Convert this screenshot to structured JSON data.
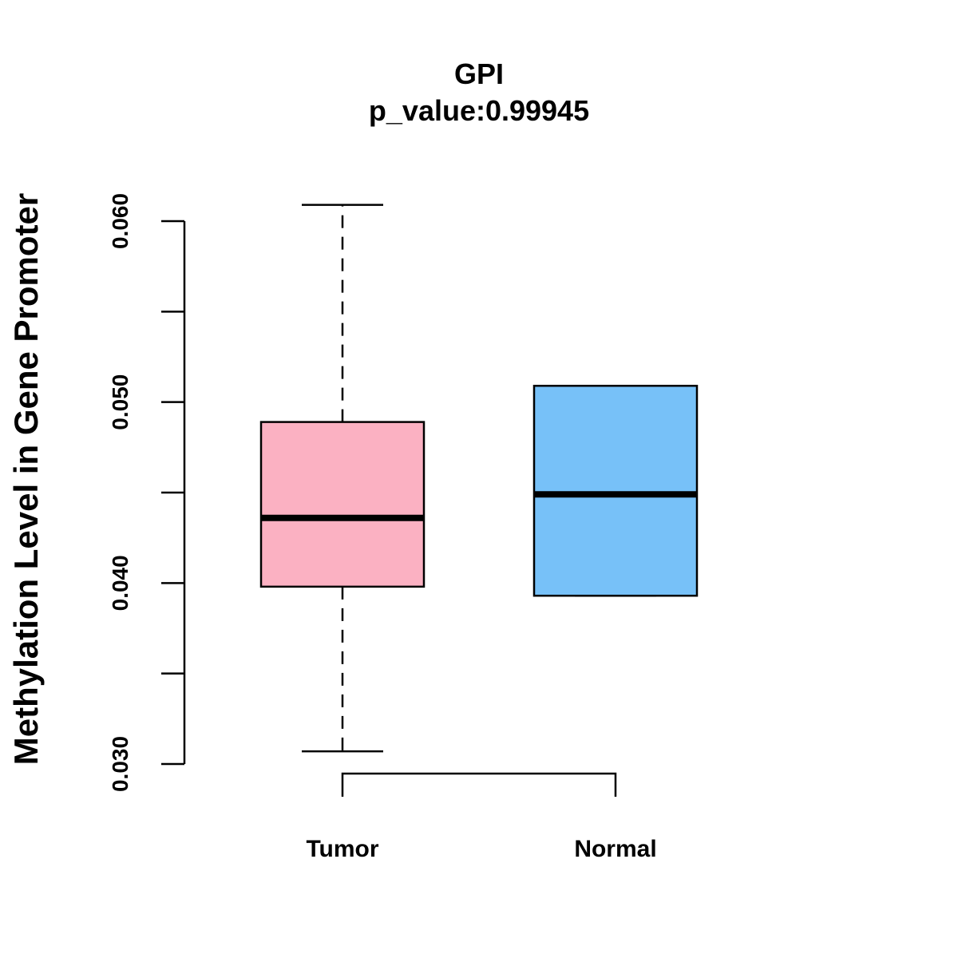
{
  "chart_data": {
    "type": "boxplot",
    "title": "GPI",
    "subtitle": "p_value:0.99945",
    "xlabel": "",
    "ylabel": "Methylation Level in Gene Promoter",
    "ylim": [
      0.03,
      0.06
    ],
    "y_ticks": [
      0.03,
      0.035,
      0.04,
      0.045,
      0.05,
      0.055,
      0.06
    ],
    "y_tick_labels": [
      "0.030",
      "",
      "0.040",
      "",
      "0.050",
      "",
      "0.060"
    ],
    "categories": [
      "Tumor",
      "Normal"
    ],
    "boxes": [
      {
        "name": "Tumor",
        "whisker_low": 0.0307,
        "q1": 0.0398,
        "median": 0.0436,
        "q3": 0.0489,
        "whisker_high": 0.0609,
        "color": "#FBB1C2"
      },
      {
        "name": "Normal",
        "whisker_low": 0.0393,
        "q1": 0.0393,
        "median": 0.0449,
        "q3": 0.0509,
        "whisker_high": 0.0509,
        "color": "#77C1F8"
      }
    ],
    "comparison_bracket": true,
    "grid": false
  }
}
